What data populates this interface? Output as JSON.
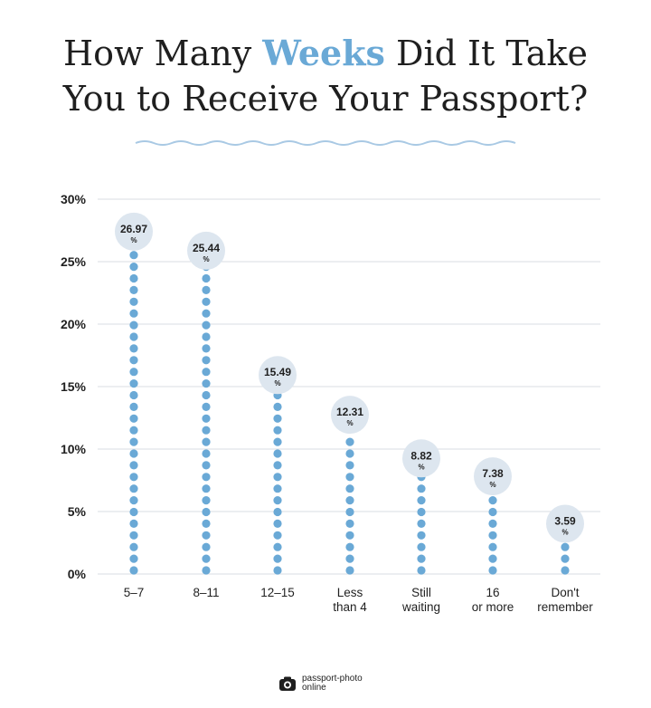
{
  "title": {
    "line1_pre": "How Many ",
    "line1_highlight": "Weeks",
    "line1_post": " Did It Take",
    "line2": "You to Receive Your Passport?"
  },
  "brand": {
    "line1": "passport-photo",
    "line2": "online",
    "icon": "camera-icon"
  },
  "colors": {
    "dot": "#6aa9d6",
    "bubble": "#dde6ef",
    "grid": "#d9dde3",
    "wave": "#a9c9e4",
    "text": "#1f1f1f"
  },
  "chart_data": {
    "type": "bar",
    "categories": [
      [
        "5–7"
      ],
      [
        "8–11"
      ],
      [
        "12–15"
      ],
      [
        "Less",
        "than 4"
      ],
      [
        "Still",
        "waiting"
      ],
      [
        "16",
        "or more"
      ],
      [
        "Don't",
        "remember"
      ]
    ],
    "values": [
      26.97,
      25.44,
      15.49,
      12.31,
      8.82,
      7.38,
      3.59
    ],
    "value_labels": [
      "26.97",
      "25.44",
      "15.49",
      "12.31",
      "8.82",
      "7.38",
      "3.59"
    ],
    "value_unit": "%",
    "ylim": [
      0,
      30
    ],
    "yticks": [
      "0%",
      "5%",
      "10%",
      "15%",
      "20%",
      "25%",
      "30%"
    ],
    "grid": true
  }
}
